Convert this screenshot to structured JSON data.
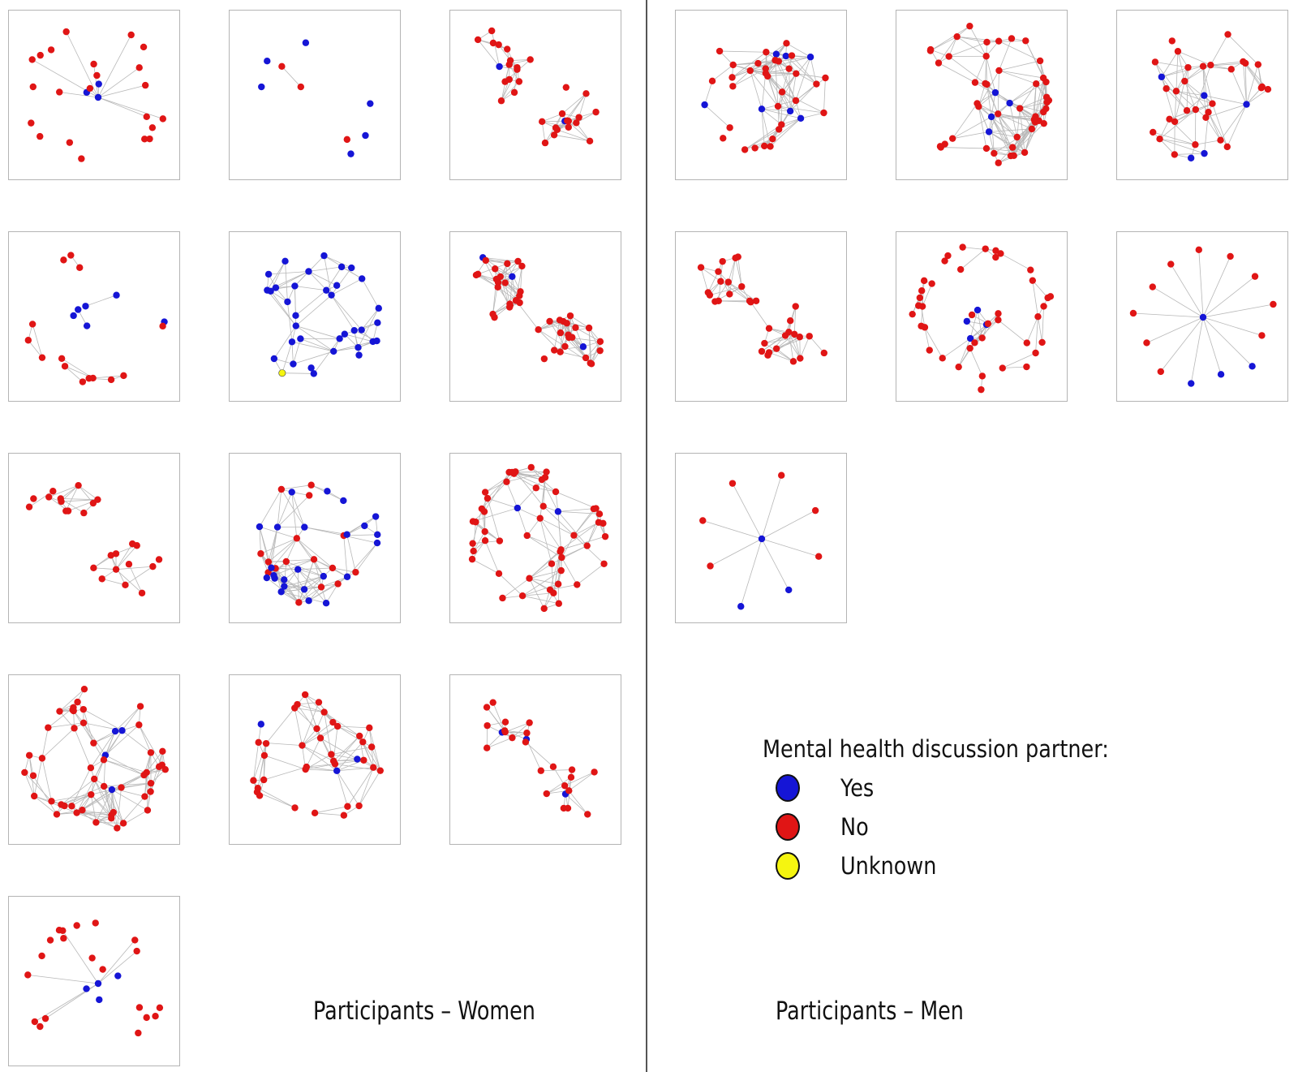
{
  "colors": {
    "yes": "#1515d6",
    "no": "#e01515",
    "unknown": "#f5f510",
    "edge": "#b8b8b8"
  },
  "labels": {
    "women": "Participants – Women",
    "men": "Participants – Men"
  },
  "legend": {
    "title": "Mental health discussion partner:",
    "items": [
      {
        "key": "yes",
        "label": "Yes"
      },
      {
        "key": "no",
        "label": "No"
      },
      {
        "key": "unknown",
        "label": "Unknown"
      }
    ]
  },
  "networks": {
    "women": [
      {
        "yes": 3,
        "no": 22,
        "unknown": 0,
        "layout": "star-ring"
      },
      {
        "yes": 6,
        "no": 3,
        "unknown": 0,
        "layout": "two-cluster"
      },
      {
        "yes": 2,
        "no": 30,
        "unknown": 0,
        "layout": "clusters"
      },
      {
        "yes": 6,
        "no": 14,
        "unknown": 0,
        "layout": "ring"
      },
      {
        "yes": 34,
        "no": 0,
        "unknown": 1,
        "layout": "dense"
      },
      {
        "yes": 3,
        "no": 42,
        "unknown": 0,
        "layout": "two-cluster"
      },
      {
        "yes": 0,
        "no": 24,
        "unknown": 0,
        "layout": "clusters"
      },
      {
        "yes": 24,
        "no": 16,
        "unknown": 0,
        "layout": "dense"
      },
      {
        "yes": 2,
        "no": 50,
        "unknown": 0,
        "layout": "ring-dense"
      },
      {
        "yes": 4,
        "no": 48,
        "unknown": 0,
        "layout": "ring-dense"
      },
      {
        "yes": 3,
        "no": 35,
        "unknown": 0,
        "layout": "dense"
      },
      {
        "yes": 3,
        "no": 22,
        "unknown": 0,
        "layout": "clusters"
      },
      {
        "yes": 4,
        "no": 20,
        "unknown": 0,
        "layout": "star-ring"
      }
    ],
    "men": [
      {
        "yes": 7,
        "no": 32,
        "unknown": 0,
        "layout": "dense"
      },
      {
        "yes": 4,
        "no": 46,
        "unknown": 0,
        "layout": "ring-dense"
      },
      {
        "yes": 5,
        "no": 30,
        "unknown": 0,
        "layout": "dense"
      },
      {
        "yes": 0,
        "no": 32,
        "unknown": 0,
        "layout": "clusters"
      },
      {
        "yes": 4,
        "no": 40,
        "unknown": 0,
        "layout": "ring"
      },
      {
        "yes": 4,
        "no": 10,
        "unknown": 0,
        "layout": "star"
      },
      {
        "yes": 3,
        "no": 6,
        "unknown": 0,
        "layout": "star"
      }
    ]
  }
}
